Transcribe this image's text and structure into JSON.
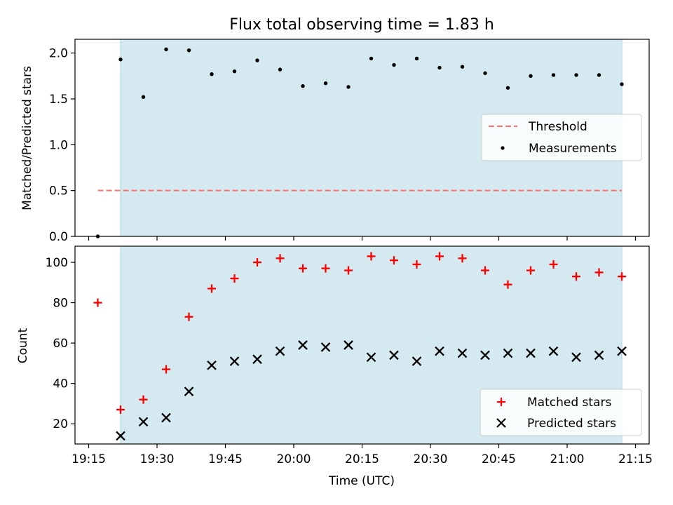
{
  "chart_data": [
    {
      "type": "scatter",
      "title": "Flux total observing time = 1.83 h",
      "ylabel": "Matched/Predicted stars",
      "ylim": [
        0,
        2.15
      ],
      "yticks": [
        0.0,
        0.5,
        1.0,
        1.5,
        2.0
      ],
      "ytick_labels": [
        "0.0",
        "0.5",
        "1.0",
        "1.5",
        "2.0"
      ],
      "x_axis_format": "HH:MM",
      "shaded_interval": {
        "start": "19:22",
        "end": "21:12",
        "color": "#d4eaf0"
      },
      "threshold": {
        "name": "Threshold",
        "value": 0.5,
        "x_start": "19:17",
        "x_end": "21:12",
        "color": "#ff7070"
      },
      "series": [
        {
          "name": "Measurements",
          "marker": "dot",
          "color": "#000000",
          "x": [
            "19:17",
            "19:22",
            "19:27",
            "19:32",
            "19:37",
            "19:42",
            "19:47",
            "19:52",
            "19:57",
            "20:02",
            "20:07",
            "20:12",
            "20:17",
            "20:22",
            "20:27",
            "20:32",
            "20:37",
            "20:42",
            "20:47",
            "20:52",
            "20:57",
            "21:02",
            "21:07",
            "21:12"
          ],
          "y": [
            0.0,
            1.93,
            1.52,
            2.04,
            2.03,
            1.77,
            1.8,
            1.92,
            1.82,
            1.64,
            1.67,
            1.63,
            1.94,
            1.87,
            1.94,
            1.84,
            1.85,
            1.78,
            1.62,
            1.75,
            1.76,
            1.76,
            1.76,
            1.66
          ]
        }
      ],
      "legend": {
        "position": "center-right",
        "entries": [
          "Threshold",
          "Measurements"
        ]
      }
    },
    {
      "type": "scatter",
      "ylabel": "Count",
      "xlabel": "Time (UTC)",
      "ylim": [
        10,
        108
      ],
      "yticks": [
        20,
        40,
        60,
        80,
        100
      ],
      "xticks": [
        "19:15",
        "19:30",
        "19:45",
        "20:00",
        "20:15",
        "20:30",
        "20:45",
        "21:00",
        "21:15"
      ],
      "xlim": [
        "19:12",
        "21:18"
      ],
      "series": [
        {
          "name": "Matched stars",
          "marker": "plus",
          "color": "#ff0000",
          "x": [
            "19:17",
            "19:22",
            "19:27",
            "19:32",
            "19:37",
            "19:42",
            "19:47",
            "19:52",
            "19:57",
            "20:02",
            "20:07",
            "20:12",
            "20:17",
            "20:22",
            "20:27",
            "20:32",
            "20:37",
            "20:42",
            "20:47",
            "20:52",
            "20:57",
            "21:02",
            "21:07",
            "21:12"
          ],
          "y": [
            80,
            27,
            32,
            47,
            73,
            87,
            92,
            100,
            102,
            97,
            97,
            96,
            103,
            101,
            99,
            103,
            102,
            96,
            89,
            96,
            99,
            93,
            95,
            93
          ]
        },
        {
          "name": "Predicted stars",
          "marker": "x",
          "color": "#000000",
          "x": [
            "19:22",
            "19:27",
            "19:32",
            "19:37",
            "19:42",
            "19:47",
            "19:52",
            "19:57",
            "20:02",
            "20:07",
            "20:12",
            "20:17",
            "20:22",
            "20:27",
            "20:32",
            "20:37",
            "20:42",
            "20:47",
            "20:52",
            "20:57",
            "21:02",
            "21:07",
            "21:12"
          ],
          "y": [
            14,
            21,
            23,
            36,
            49,
            51,
            52,
            56,
            59,
            58,
            59,
            53,
            54,
            51,
            56,
            55,
            54,
            55,
            55,
            56,
            53,
            54,
            56
          ]
        }
      ],
      "legend": {
        "position": "bottom-right",
        "entries": [
          "Matched stars",
          "Predicted stars"
        ]
      }
    }
  ]
}
